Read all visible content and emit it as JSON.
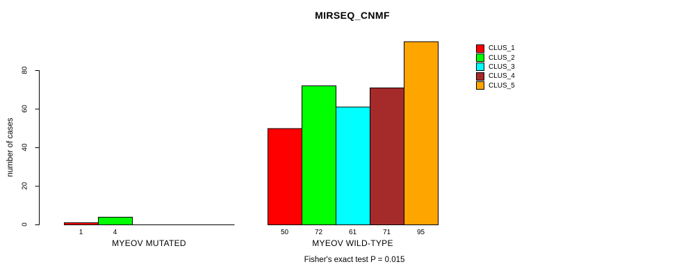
{
  "chart": {
    "title": "MIRSEQ_CNMF",
    "ylabel": "number of cases",
    "footnote": "Fisher's exact test P = 0.015"
  },
  "chart_data": {
    "type": "bar",
    "title": "MIRSEQ_CNMF",
    "xlabel": "",
    "ylabel": "number of cases",
    "annotation": "Fisher's exact test P = 0.015",
    "ylim": [
      0,
      95
    ],
    "yticks": [
      0,
      20,
      40,
      60,
      80
    ],
    "grid": false,
    "legend_position": "right",
    "series": [
      "CLUS_1",
      "CLUS_2",
      "CLUS_3",
      "CLUS_4",
      "CLUS_5"
    ],
    "colors": [
      "#FF0000",
      "#00FF00",
      "#00FFFF",
      "#A52A2A",
      "#FFA500"
    ],
    "groups": [
      {
        "label": "MYEOV MUTATED",
        "values": [
          1,
          4,
          0,
          0,
          0
        ],
        "bar_labels": [
          "1",
          "4",
          "",
          "",
          ""
        ]
      },
      {
        "label": "MYEOV WILD-TYPE",
        "values": [
          50,
          72,
          61,
          71,
          95
        ],
        "bar_labels": [
          "50",
          "72",
          "61",
          "71",
          "95"
        ]
      }
    ]
  },
  "legend": {
    "items": [
      {
        "label": "CLUS_1",
        "color": "#FF0000"
      },
      {
        "label": "CLUS_2",
        "color": "#00FF00"
      },
      {
        "label": "CLUS_3",
        "color": "#00FFFF"
      },
      {
        "label": "CLUS_4",
        "color": "#A52A2A"
      },
      {
        "label": "CLUS_5",
        "color": "#FFA500"
      }
    ]
  }
}
